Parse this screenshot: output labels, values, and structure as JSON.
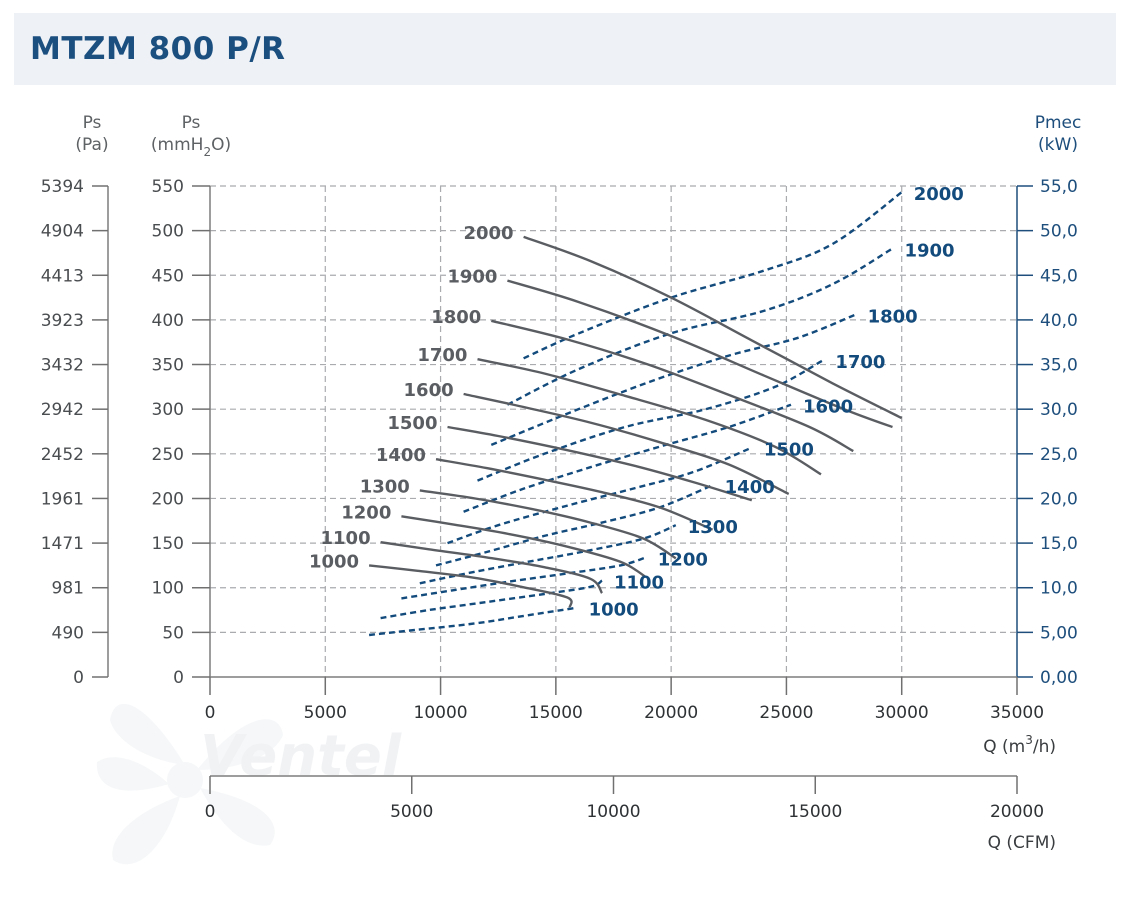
{
  "title": "MTZM 800 P/R",
  "watermark": {
    "brand": "Ventel"
  },
  "colors": {
    "title": "#1b4f80",
    "pressure": "#5a5d62",
    "power": "#134b7d",
    "axis": "#707070",
    "grid": "#a9abae",
    "right_axis": "#1d4e7c"
  },
  "chart_data": {
    "type": "line",
    "axes": {
      "ps_pa": {
        "label": "Ps",
        "unit": "(Pa)",
        "ticks": [
          "5394",
          "4904",
          "4413",
          "3923",
          "3432",
          "2942",
          "2452",
          "1961",
          "1471",
          "981",
          "490",
          "0"
        ]
      },
      "ps_mmh2o": {
        "label": "Ps",
        "unit_pre": "(mmH",
        "unit_sub": "2",
        "unit_post": "O)",
        "range": [
          0,
          550
        ],
        "ticks": [
          "550",
          "500",
          "450",
          "400",
          "350",
          "300",
          "250",
          "200",
          "150",
          "100",
          "50",
          "0"
        ]
      },
      "pmec": {
        "label": "Pmec",
        "unit": "(kW)",
        "range": [
          0,
          55
        ],
        "ticks": [
          "55,0",
          "50,0",
          "45,0",
          "40,0",
          "35,0",
          "30,0",
          "25,0",
          "20,0",
          "15,0",
          "10,0",
          "5,00",
          "0,00"
        ]
      },
      "q_m3h": {
        "label_pre": "Q (m",
        "label_sup": "3",
        "label_post": "/h)",
        "range": [
          0,
          35000
        ],
        "ticks": [
          "0",
          "5000",
          "10000",
          "15000",
          "20000",
          "25000",
          "30000",
          "35000"
        ]
      },
      "q_cfm": {
        "label": "Q (CFM)",
        "range": [
          0,
          20000
        ],
        "ticks": [
          "0",
          "5000",
          "10000",
          "15000",
          "20000"
        ]
      }
    },
    "grid": true,
    "pressure_curves": [
      {
        "name": "2000",
        "points": [
          [
            13600,
            493
          ],
          [
            16500,
            466
          ],
          [
            20000,
            425
          ],
          [
            23500,
            377
          ],
          [
            27000,
            329
          ],
          [
            30000,
            290
          ]
        ]
      },
      {
        "name": "1900",
        "points": [
          [
            12900,
            444
          ],
          [
            16000,
            420
          ],
          [
            20000,
            382
          ],
          [
            24000,
            338
          ],
          [
            27500,
            300
          ],
          [
            29600,
            280
          ]
        ]
      },
      {
        "name": "1800",
        "points": [
          [
            12200,
            399
          ],
          [
            15500,
            378
          ],
          [
            19000,
            350
          ],
          [
            22500,
            316
          ],
          [
            26000,
            280
          ],
          [
            27900,
            253
          ]
        ]
      },
      {
        "name": "1700",
        "points": [
          [
            11600,
            356
          ],
          [
            14500,
            340
          ],
          [
            18000,
            315
          ],
          [
            21500,
            288
          ],
          [
            24500,
            258
          ],
          [
            26500,
            227
          ]
        ]
      },
      {
        "name": "1600",
        "points": [
          [
            11000,
            317
          ],
          [
            13500,
            303
          ],
          [
            16500,
            285
          ],
          [
            19500,
            263
          ],
          [
            22500,
            238
          ],
          [
            25100,
            205
          ]
        ]
      },
      {
        "name": "1500",
        "points": [
          [
            10300,
            280
          ],
          [
            12500,
            270
          ],
          [
            15500,
            254
          ],
          [
            18500,
            236
          ],
          [
            21000,
            218
          ],
          [
            23500,
            198
          ]
        ]
      },
      {
        "name": "1400",
        "points": [
          [
            9800,
            244
          ],
          [
            12000,
            234
          ],
          [
            14500,
            221
          ],
          [
            17000,
            207
          ],
          [
            19500,
            190
          ],
          [
            21800,
            165
          ]
        ]
      },
      {
        "name": "1300",
        "points": [
          [
            9100,
            209
          ],
          [
            11500,
            200
          ],
          [
            14000,
            188
          ],
          [
            16500,
            173
          ],
          [
            18800,
            155
          ],
          [
            20200,
            133
          ]
        ]
      },
      {
        "name": "1200",
        "points": [
          [
            8300,
            180
          ],
          [
            10500,
            171
          ],
          [
            13000,
            160
          ],
          [
            15500,
            146
          ],
          [
            17800,
            129
          ],
          [
            18900,
            112
          ]
        ]
      },
      {
        "name": "1100",
        "points": [
          [
            7400,
            151
          ],
          [
            9500,
            143
          ],
          [
            12000,
            134
          ],
          [
            14500,
            123
          ],
          [
            16500,
            110
          ],
          [
            17000,
            94
          ]
        ]
      },
      {
        "name": "1000",
        "points": [
          [
            6900,
            125
          ],
          [
            9000,
            119
          ],
          [
            11500,
            111
          ],
          [
            13500,
            101
          ],
          [
            15500,
            89
          ],
          [
            15600,
            78
          ]
        ]
      }
    ],
    "power_curves": [
      {
        "name": "2000",
        "points": [
          [
            13600,
            35.7
          ],
          [
            16000,
            38.5
          ],
          [
            20000,
            42.5
          ],
          [
            24000,
            45.5
          ],
          [
            27000,
            48.5
          ],
          [
            30000,
            54.3
          ]
        ]
      },
      {
        "name": "1900",
        "points": [
          [
            12900,
            30.5
          ],
          [
            16000,
            34.5
          ],
          [
            20000,
            38.5
          ],
          [
            24000,
            41.0
          ],
          [
            27000,
            44.0
          ],
          [
            29600,
            48.0
          ]
        ]
      },
      {
        "name": "1800",
        "points": [
          [
            12200,
            26.0
          ],
          [
            15500,
            29.5
          ],
          [
            19000,
            33.0
          ],
          [
            22500,
            36.0
          ],
          [
            25500,
            38.0
          ],
          [
            28000,
            40.6
          ]
        ]
      },
      {
        "name": "1700",
        "points": [
          [
            11600,
            22.0
          ],
          [
            14500,
            25.0
          ],
          [
            18000,
            28.0
          ],
          [
            21500,
            30.0
          ],
          [
            24500,
            32.5
          ],
          [
            26600,
            35.5
          ]
        ]
      },
      {
        "name": "1600",
        "points": [
          [
            11000,
            18.5
          ],
          [
            13500,
            21.0
          ],
          [
            16500,
            23.5
          ],
          [
            19500,
            25.8
          ],
          [
            22500,
            28.0
          ],
          [
            25200,
            30.5
          ]
        ]
      },
      {
        "name": "1500",
        "points": [
          [
            10300,
            15.0
          ],
          [
            12500,
            17.0
          ],
          [
            15500,
            19.2
          ],
          [
            18500,
            21.2
          ],
          [
            21000,
            23.0
          ],
          [
            23500,
            25.7
          ]
        ]
      },
      {
        "name": "1400",
        "points": [
          [
            9800,
            12.5
          ],
          [
            12000,
            14.0
          ],
          [
            14500,
            15.8
          ],
          [
            17000,
            17.3
          ],
          [
            19500,
            19.0
          ],
          [
            21800,
            21.5
          ]
        ]
      },
      {
        "name": "1300",
        "points": [
          [
            9100,
            10.5
          ],
          [
            11500,
            11.8
          ],
          [
            14000,
            13.0
          ],
          [
            16500,
            14.2
          ],
          [
            18800,
            15.5
          ],
          [
            20200,
            17.0
          ]
        ]
      },
      {
        "name": "1200",
        "points": [
          [
            8300,
            8.8
          ],
          [
            10500,
            9.7
          ],
          [
            13000,
            10.7
          ],
          [
            15500,
            11.6
          ],
          [
            17800,
            12.5
          ],
          [
            18900,
            13.4
          ]
        ]
      },
      {
        "name": "1100",
        "points": [
          [
            7400,
            6.6
          ],
          [
            9500,
            7.5
          ],
          [
            12000,
            8.4
          ],
          [
            14500,
            9.3
          ],
          [
            16500,
            10.1
          ],
          [
            17000,
            10.8
          ]
        ]
      },
      {
        "name": "1000",
        "points": [
          [
            6900,
            4.7
          ],
          [
            9000,
            5.3
          ],
          [
            11500,
            6.0
          ],
          [
            13500,
            6.8
          ],
          [
            15500,
            7.6
          ],
          [
            15900,
            7.8
          ]
        ]
      }
    ]
  }
}
